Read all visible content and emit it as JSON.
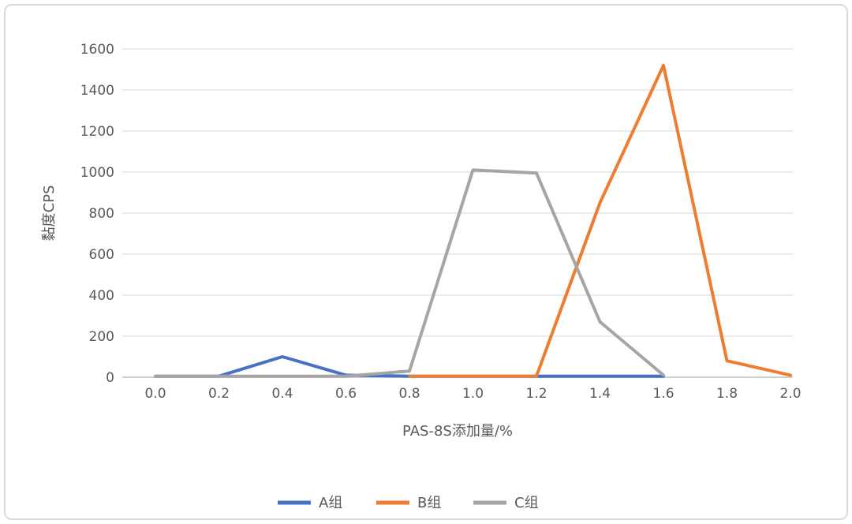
{
  "chart_data": {
    "type": "line",
    "title": "",
    "xlabel": "PAS-8S添加量/%",
    "ylabel": "黏度CPS",
    "xlim": [
      0.0,
      2.0
    ],
    "ylim": [
      0,
      1600
    ],
    "x_ticks": [
      "0.0",
      "0.2",
      "0.4",
      "0.6",
      "0.8",
      "1.0",
      "1.2",
      "1.4",
      "1.6",
      "1.8",
      "2.0"
    ],
    "y_ticks": [
      "0",
      "200",
      "400",
      "600",
      "800",
      "1000",
      "1200",
      "1400",
      "1600"
    ],
    "grid": "horizontal",
    "legend_position": "bottom",
    "colors": {
      "gridline": "#d9d9d9",
      "zero_line": "#bfbfbf",
      "text": "#595959",
      "series_a": "#4472C4",
      "series_b": "#ED7D31",
      "series_c": "#A5A5A5"
    },
    "series": [
      {
        "name": "A组",
        "color": "#4472C4",
        "x": [
          0.0,
          0.2,
          0.4,
          0.6,
          0.8,
          1.0,
          1.2,
          1.4,
          1.6
        ],
        "y": [
          5,
          5,
          100,
          10,
          5,
          5,
          5,
          5,
          5
        ]
      },
      {
        "name": "B组",
        "color": "#ED7D31",
        "x": [
          0.8,
          1.0,
          1.2,
          1.4,
          1.6,
          1.8,
          2.0
        ],
        "y": [
          5,
          5,
          5,
          850,
          1520,
          80,
          10
        ]
      },
      {
        "name": "C组",
        "color": "#A5A5A5",
        "x": [
          0.0,
          0.2,
          0.4,
          0.6,
          0.8,
          1.0,
          1.2,
          1.4,
          1.6
        ],
        "y": [
          5,
          5,
          5,
          5,
          30,
          1010,
          995,
          270,
          10
        ]
      }
    ]
  }
}
